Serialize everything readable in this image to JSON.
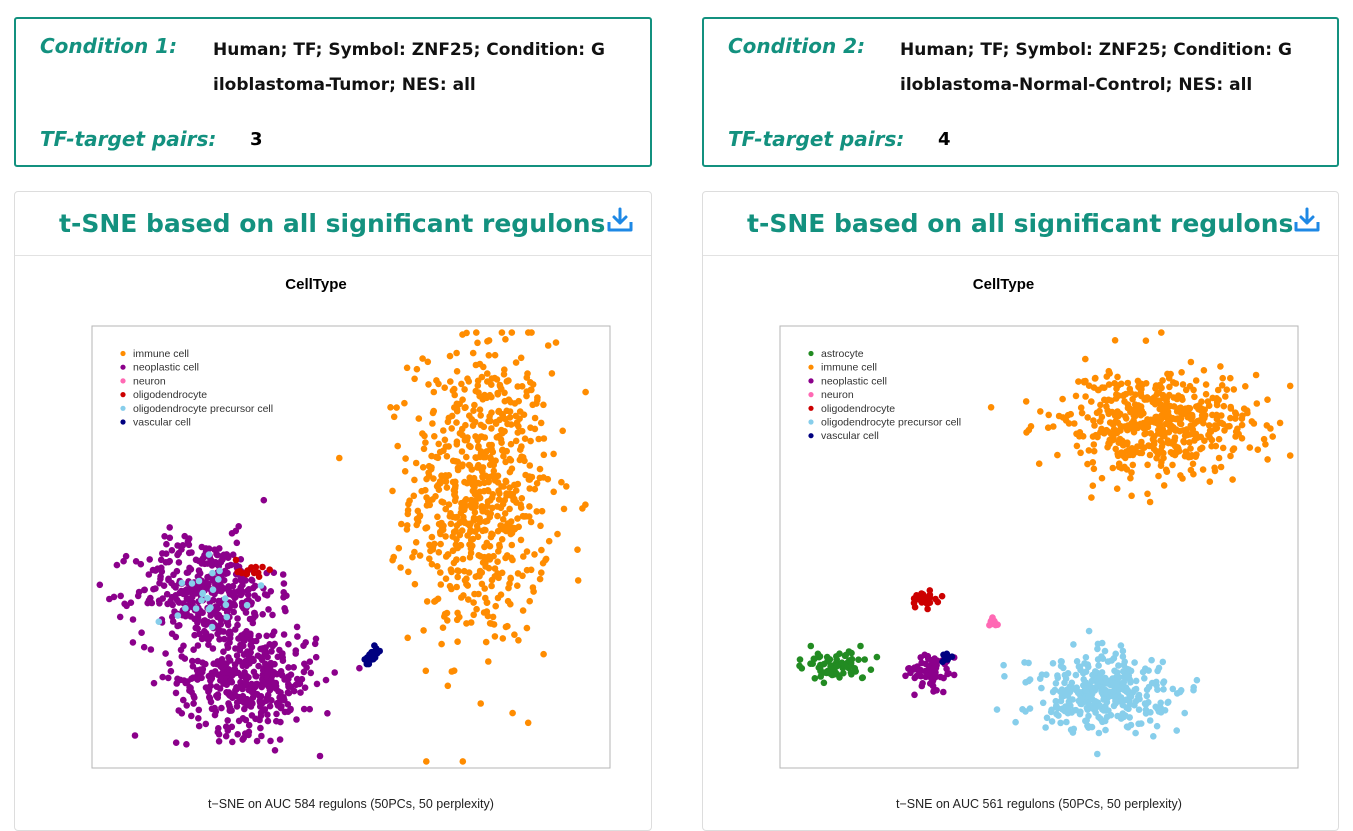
{
  "conditions": [
    {
      "label": "Condition 1:",
      "text": "Human;  TF;  Symbol:  ZNF25;  Condition: Giloblastoma-Tumor;  NES: all",
      "pairs_label": "TF-target pairs:",
      "pairs_value": "3"
    },
    {
      "label": "Condition 2:",
      "text": "Human;  TF;  Symbol:  ZNF25;  Condition: Giloblastoma-Normal-Control;  NES: all",
      "pairs_label": "TF-target pairs:",
      "pairs_value": "4"
    }
  ],
  "panels": [
    {
      "title": "t-SNE based on all significant regulons",
      "download_icon": "download-icon"
    },
    {
      "title": "t-SNE based on all significant regulons",
      "download_icon": "download-icon"
    }
  ],
  "chart_data": [
    {
      "type": "scatter",
      "title": "CellType",
      "xlabel": "t−SNE on AUC 584 regulons (50PCs, 50 perplexity)",
      "ylabel": "",
      "grid": false,
      "legend_position": "top-left",
      "legend": [
        {
          "name": "immune cell",
          "color": "#ff8c00"
        },
        {
          "name": "neoplastic cell",
          "color": "#8b008b"
        },
        {
          "name": "neuron",
          "color": "#ff69b4"
        },
        {
          "name": "oligodendrocyte",
          "color": "#cc0000"
        },
        {
          "name": "oligodendrocyte precursor cell",
          "color": "#87ceeb"
        },
        {
          "name": "vascular cell",
          "color": "#000080"
        }
      ],
      "clusters": [
        {
          "name": "immune cell",
          "color": "#ff8c00",
          "n": 700,
          "cx": 0.75,
          "cy": 0.62,
          "sx": 0.09,
          "sy": 0.23
        },
        {
          "name": "neoplastic cell",
          "color": "#8b008b",
          "n": 380,
          "cx": 0.22,
          "cy": 0.4,
          "sx": 0.09,
          "sy": 0.08
        },
        {
          "name": "neoplastic cell",
          "color": "#8b008b",
          "n": 420,
          "cx": 0.3,
          "cy": 0.2,
          "sx": 0.09,
          "sy": 0.08
        },
        {
          "name": "oligodendrocyte precursor cell",
          "color": "#87ceeb",
          "n": 24,
          "cx": 0.24,
          "cy": 0.4,
          "sx": 0.05,
          "sy": 0.05
        },
        {
          "name": "oligodendrocyte",
          "color": "#cc0000",
          "n": 14,
          "cx": 0.3,
          "cy": 0.45,
          "sx": 0.02,
          "sy": 0.02
        },
        {
          "name": "vascular cell",
          "color": "#000080",
          "n": 22,
          "cx": 0.54,
          "cy": 0.25,
          "sx": 0.012,
          "sy": 0.015
        }
      ]
    },
    {
      "type": "scatter",
      "title": "CellType",
      "xlabel": "t−SNE on AUC 561 regulons (50PCs, 50 perplexity)",
      "ylabel": "",
      "grid": false,
      "legend_position": "top-left",
      "legend": [
        {
          "name": "astrocyte",
          "color": "#228b22"
        },
        {
          "name": "immune cell",
          "color": "#ff8c00"
        },
        {
          "name": "neoplastic cell",
          "color": "#8b008b"
        },
        {
          "name": "neuron",
          "color": "#ff69b4"
        },
        {
          "name": "oligodendrocyte",
          "color": "#cc0000"
        },
        {
          "name": "oligodendrocyte precursor cell",
          "color": "#87ceeb"
        },
        {
          "name": "vascular cell",
          "color": "#000080"
        }
      ],
      "clusters": [
        {
          "name": "immune cell",
          "color": "#ff8c00",
          "n": 520,
          "cx": 0.72,
          "cy": 0.78,
          "sx": 0.13,
          "sy": 0.08
        },
        {
          "name": "oligodendrocyte precursor cell",
          "color": "#87ceeb",
          "n": 360,
          "cx": 0.62,
          "cy": 0.17,
          "sx": 0.09,
          "sy": 0.06
        },
        {
          "name": "astrocyte",
          "color": "#228b22",
          "n": 80,
          "cx": 0.11,
          "cy": 0.23,
          "sx": 0.04,
          "sy": 0.022
        },
        {
          "name": "neoplastic cell",
          "color": "#8b008b",
          "n": 70,
          "cx": 0.29,
          "cy": 0.22,
          "sx": 0.03,
          "sy": 0.03
        },
        {
          "name": "oligodendrocyte",
          "color": "#cc0000",
          "n": 32,
          "cx": 0.28,
          "cy": 0.38,
          "sx": 0.015,
          "sy": 0.012
        },
        {
          "name": "neuron",
          "color": "#ff69b4",
          "n": 10,
          "cx": 0.41,
          "cy": 0.33,
          "sx": 0.008,
          "sy": 0.006
        },
        {
          "name": "vascular cell",
          "color": "#000080",
          "n": 6,
          "cx": 0.32,
          "cy": 0.25,
          "sx": 0.01,
          "sy": 0.01
        }
      ]
    }
  ]
}
